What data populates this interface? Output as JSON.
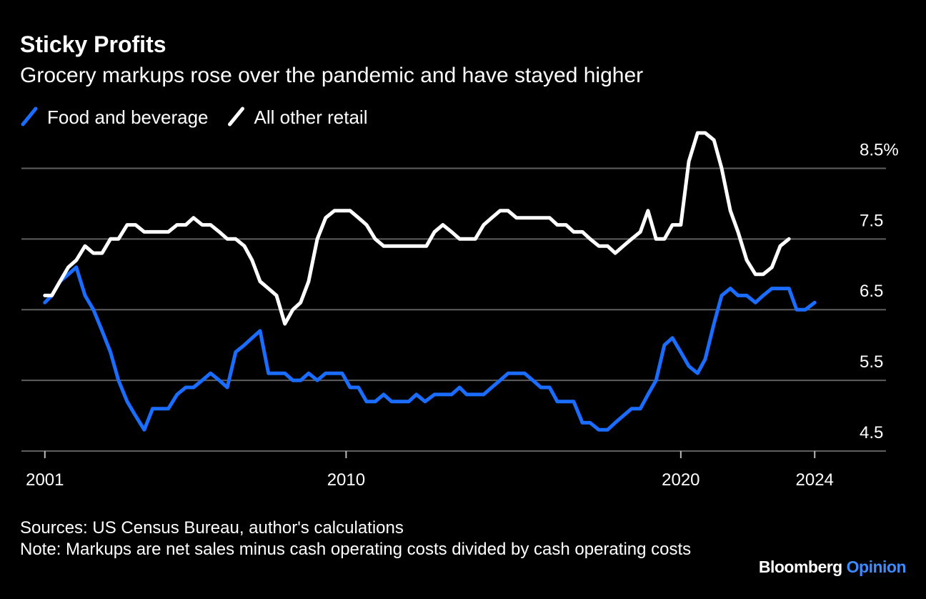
{
  "chart_data": {
    "type": "line",
    "title": "Sticky Profits",
    "subtitle": "Grocery markups rose over the pandemic and have stayed higher",
    "sources": "Sources: US Census Bureau, author's calculations",
    "note": "Note: Markups are net sales minus cash operating costs divided by cash operating costs",
    "brand": [
      "Bloomberg",
      "Opinion"
    ],
    "xlim": [
      2000.3,
      2026.13
    ],
    "xticks": [
      2001,
      2010,
      2020,
      2024
    ],
    "ylim": [
      4.5,
      9.0
    ],
    "yticks": [
      4.5,
      5.5,
      6.5,
      7.5,
      {
        "value": 8.5,
        "label": "8.5%"
      }
    ],
    "grid": true,
    "legend": "top-left",
    "series": [
      {
        "name": "Food and beverage",
        "color": "#1a6dff",
        "x": [
          2001.0,
          2001.21,
          2001.45,
          2001.7,
          2001.94,
          2002.2,
          2002.45,
          2002.71,
          2002.96,
          2003.2,
          2003.46,
          2003.71,
          2003.97,
          2004.22,
          2004.69,
          2004.95,
          2005.21,
          2005.44,
          2005.7,
          2005.95,
          2006.21,
          2006.45,
          2006.7,
          2006.96,
          2007.19,
          2007.43,
          2007.68,
          2008.17,
          2008.41,
          2008.64,
          2008.88,
          2009.14,
          2009.39,
          2009.88,
          2010.12,
          2010.37,
          2010.61,
          2010.87,
          2011.12,
          2011.36,
          2011.87,
          2012.1,
          2012.36,
          2012.64,
          2013.15,
          2013.39,
          2013.6,
          2014.11,
          2014.35,
          2014.6,
          2014.84,
          2015.33,
          2015.58,
          2015.82,
          2016.08,
          2016.31,
          2016.8,
          2017.06,
          2017.29,
          2017.55,
          2017.81,
          2018.04,
          2018.28,
          2018.53,
          2018.79,
          2019.02,
          2019.26,
          2019.51,
          2019.75,
          2020.0,
          2020.24,
          2020.5,
          2020.73,
          2020.99,
          2021.22,
          2021.48,
          2021.71,
          2021.97,
          2022.23,
          2022.46,
          2022.72,
          2023.23,
          2023.46,
          2023.72,
          2024.0
        ],
        "values": [
          6.6,
          6.7,
          6.9,
          7.0,
          7.1,
          6.7,
          6.5,
          6.2,
          5.9,
          5.5,
          5.2,
          5.0,
          4.8,
          5.1,
          5.1,
          5.3,
          5.4,
          5.4,
          5.5,
          5.6,
          5.5,
          5.4,
          5.9,
          6.0,
          6.1,
          6.2,
          5.6,
          5.6,
          5.5,
          5.5,
          5.6,
          5.5,
          5.6,
          5.6,
          5.4,
          5.4,
          5.2,
          5.2,
          5.3,
          5.2,
          5.2,
          5.3,
          5.2,
          5.3,
          5.3,
          5.4,
          5.3,
          5.3,
          5.4,
          5.5,
          5.6,
          5.6,
          5.5,
          5.4,
          5.4,
          5.2,
          5.2,
          4.9,
          4.9,
          4.8,
          4.8,
          4.9,
          5.0,
          5.1,
          5.1,
          5.3,
          5.5,
          6.0,
          6.1,
          5.9,
          5.7,
          5.6,
          5.8,
          6.3,
          6.7,
          6.8,
          6.7,
          6.7,
          6.6,
          6.7,
          6.8,
          6.8,
          6.5,
          6.5,
          6.6
        ]
      },
      {
        "name": "All other retail",
        "color": "#ffffff",
        "x": [
          2001.0,
          2001.21,
          2001.45,
          2001.7,
          2001.94,
          2002.2,
          2002.45,
          2002.71,
          2002.96,
          2003.2,
          2003.46,
          2003.71,
          2003.97,
          2004.22,
          2004.69,
          2004.95,
          2005.21,
          2005.44,
          2005.7,
          2005.95,
          2006.21,
          2006.45,
          2006.7,
          2006.96,
          2007.19,
          2007.43,
          2007.68,
          2007.92,
          2008.17,
          2008.41,
          2008.64,
          2008.88,
          2009.14,
          2009.39,
          2009.65,
          2010.12,
          2010.37,
          2010.61,
          2010.87,
          2011.12,
          2012.4,
          2012.64,
          2012.89,
          2013.15,
          2013.39,
          2013.86,
          2014.11,
          2014.35,
          2014.6,
          2014.84,
          2015.09,
          2016.08,
          2016.31,
          2016.57,
          2016.8,
          2017.06,
          2017.29,
          2017.55,
          2017.81,
          2018.04,
          2018.28,
          2018.53,
          2018.79,
          2019.02,
          2019.26,
          2019.51,
          2019.75,
          2020.0,
          2020.24,
          2020.5,
          2020.73,
          2020.99,
          2021.22,
          2021.48,
          2021.71,
          2021.97,
          2022.23,
          2022.46,
          2022.72,
          2022.97,
          2023.23
        ],
        "values": [
          6.7,
          6.7,
          6.9,
          7.1,
          7.2,
          7.4,
          7.3,
          7.3,
          7.5,
          7.5,
          7.7,
          7.7,
          7.6,
          7.6,
          7.6,
          7.7,
          7.7,
          7.8,
          7.7,
          7.7,
          7.6,
          7.5,
          7.5,
          7.4,
          7.2,
          6.9,
          6.8,
          6.7,
          6.3,
          6.5,
          6.6,
          6.9,
          7.5,
          7.8,
          7.9,
          7.9,
          7.8,
          7.7,
          7.5,
          7.4,
          7.4,
          7.6,
          7.7,
          7.6,
          7.5,
          7.5,
          7.7,
          7.8,
          7.9,
          7.9,
          7.8,
          7.8,
          7.7,
          7.7,
          7.6,
          7.6,
          7.5,
          7.4,
          7.4,
          7.3,
          7.4,
          7.5,
          7.6,
          7.9,
          7.5,
          7.5,
          7.7,
          7.7,
          8.6,
          9.0,
          9.0,
          8.9,
          8.5,
          7.9,
          7.6,
          7.2,
          7.0,
          7.0,
          7.1,
          7.4,
          7.5
        ]
      }
    ]
  }
}
